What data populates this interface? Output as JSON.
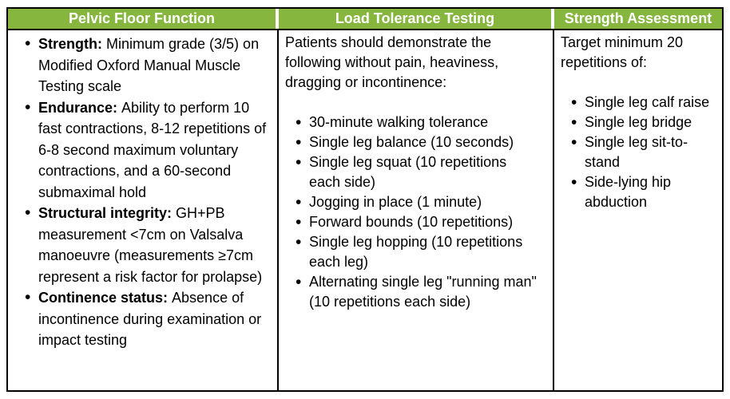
{
  "bullet_glyph": "•",
  "colors": {
    "header_bg": "#86B63D",
    "header_text": "#FFFFFF",
    "border": "#000000",
    "body_text": "#000000"
  },
  "columns": [
    {
      "header": "Pelvic Floor Function",
      "bullets": [
        {
          "term": "Strength:",
          "text": "Minimum grade (3/5) on Modified Oxford Manual Muscle Testing scale"
        },
        {
          "term": "Endurance:",
          "text": "Ability to perform 10 fast contractions, 8-12 repetitions of 6-8 second maximum voluntary contractions, and a 60-second submaximal hold"
        },
        {
          "term": "Structural integrity:",
          "text": "GH+PB measurement <7cm on Valsalva manoeuvre (measurements ≥7cm represent a risk factor for prolapse)"
        },
        {
          "term": "Continence status:",
          "text": "Absence of incontinence during examination or impact testing"
        }
      ]
    },
    {
      "header": "Load Tolerance Testing",
      "intro": "Patients should demonstrate the following without pain, heaviness, dragging or incontinence:",
      "bullets": [
        {
          "text": "30-minute walking tolerance"
        },
        {
          "text": "Single leg balance (10 seconds)"
        },
        {
          "text": "Single leg squat (10 repetitions each side)"
        },
        {
          "text": "Jogging in place (1 minute)"
        },
        {
          "text": "Forward bounds (10 repetitions)"
        },
        {
          "text": "Single leg hopping (10 repetitions each leg)"
        },
        {
          "text": "Alternating single leg \"running man\" (10 repetitions each side)"
        }
      ]
    },
    {
      "header": "Strength Assessment",
      "intro": "Target minimum 20 repetitions of:",
      "bullets": [
        {
          "text": "Single leg calf raise"
        },
        {
          "text": "Single leg bridge"
        },
        {
          "text": "Single leg sit-to-stand"
        },
        {
          "text": "Side-lying hip abduction"
        }
      ]
    }
  ]
}
